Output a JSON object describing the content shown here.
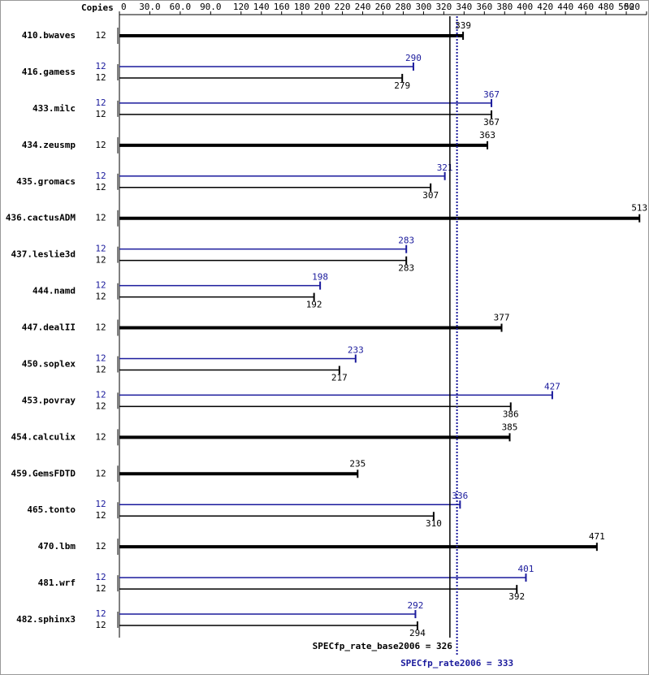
{
  "chart_data": {
    "type": "bar",
    "copies_header": "Copies",
    "categories": [
      "410.bwaves",
      "416.gamess",
      "433.milc",
      "434.zeusmp",
      "435.gromacs",
      "436.cactusADM",
      "437.leslie3d",
      "444.namd",
      "447.dealII",
      "450.soplex",
      "453.povray",
      "454.calculix",
      "459.GemsFDTD",
      "465.tonto",
      "470.lbm",
      "481.wrf",
      "482.sphinx3"
    ],
    "series": [
      {
        "color": "#000000",
        "copies": [
          12,
          12,
          12,
          12,
          12,
          12,
          12,
          12,
          12,
          12,
          12,
          12,
          12,
          12,
          12,
          12,
          12
        ],
        "values": [
          339,
          279,
          367,
          363,
          307,
          513,
          283,
          192,
          377,
          217,
          386,
          385,
          235,
          310,
          471,
          392,
          294
        ]
      },
      {
        "color": "#1a1a9c",
        "copies": [
          null,
          12,
          12,
          null,
          12,
          null,
          12,
          12,
          null,
          12,
          12,
          null,
          null,
          12,
          null,
          12,
          12
        ],
        "values": [
          null,
          290,
          367,
          null,
          321,
          null,
          283,
          198,
          null,
          233,
          427,
          null,
          null,
          336,
          null,
          401,
          292
        ]
      }
    ],
    "xlim": [
      0,
      520
    ],
    "xticks": [
      0,
      {
        "value": 30,
        "label": "30.0"
      },
      {
        "value": 60,
        "label": "60.0"
      },
      {
        "value": 90,
        "label": "90.0"
      },
      120,
      140,
      160,
      180,
      200,
      220,
      240,
      260,
      280,
      300,
      320,
      340,
      360,
      380,
      400,
      420,
      440,
      460,
      480,
      500,
      520
    ],
    "reference_lines": [
      {
        "value": 326,
        "label": "SPECfp_rate_base2006 = 326",
        "color": "#000000",
        "dashed": false
      },
      {
        "value": 333,
        "label": "SPECfp_rate2006 = 333",
        "color": "#1a1a9c",
        "dashed": true
      }
    ]
  }
}
